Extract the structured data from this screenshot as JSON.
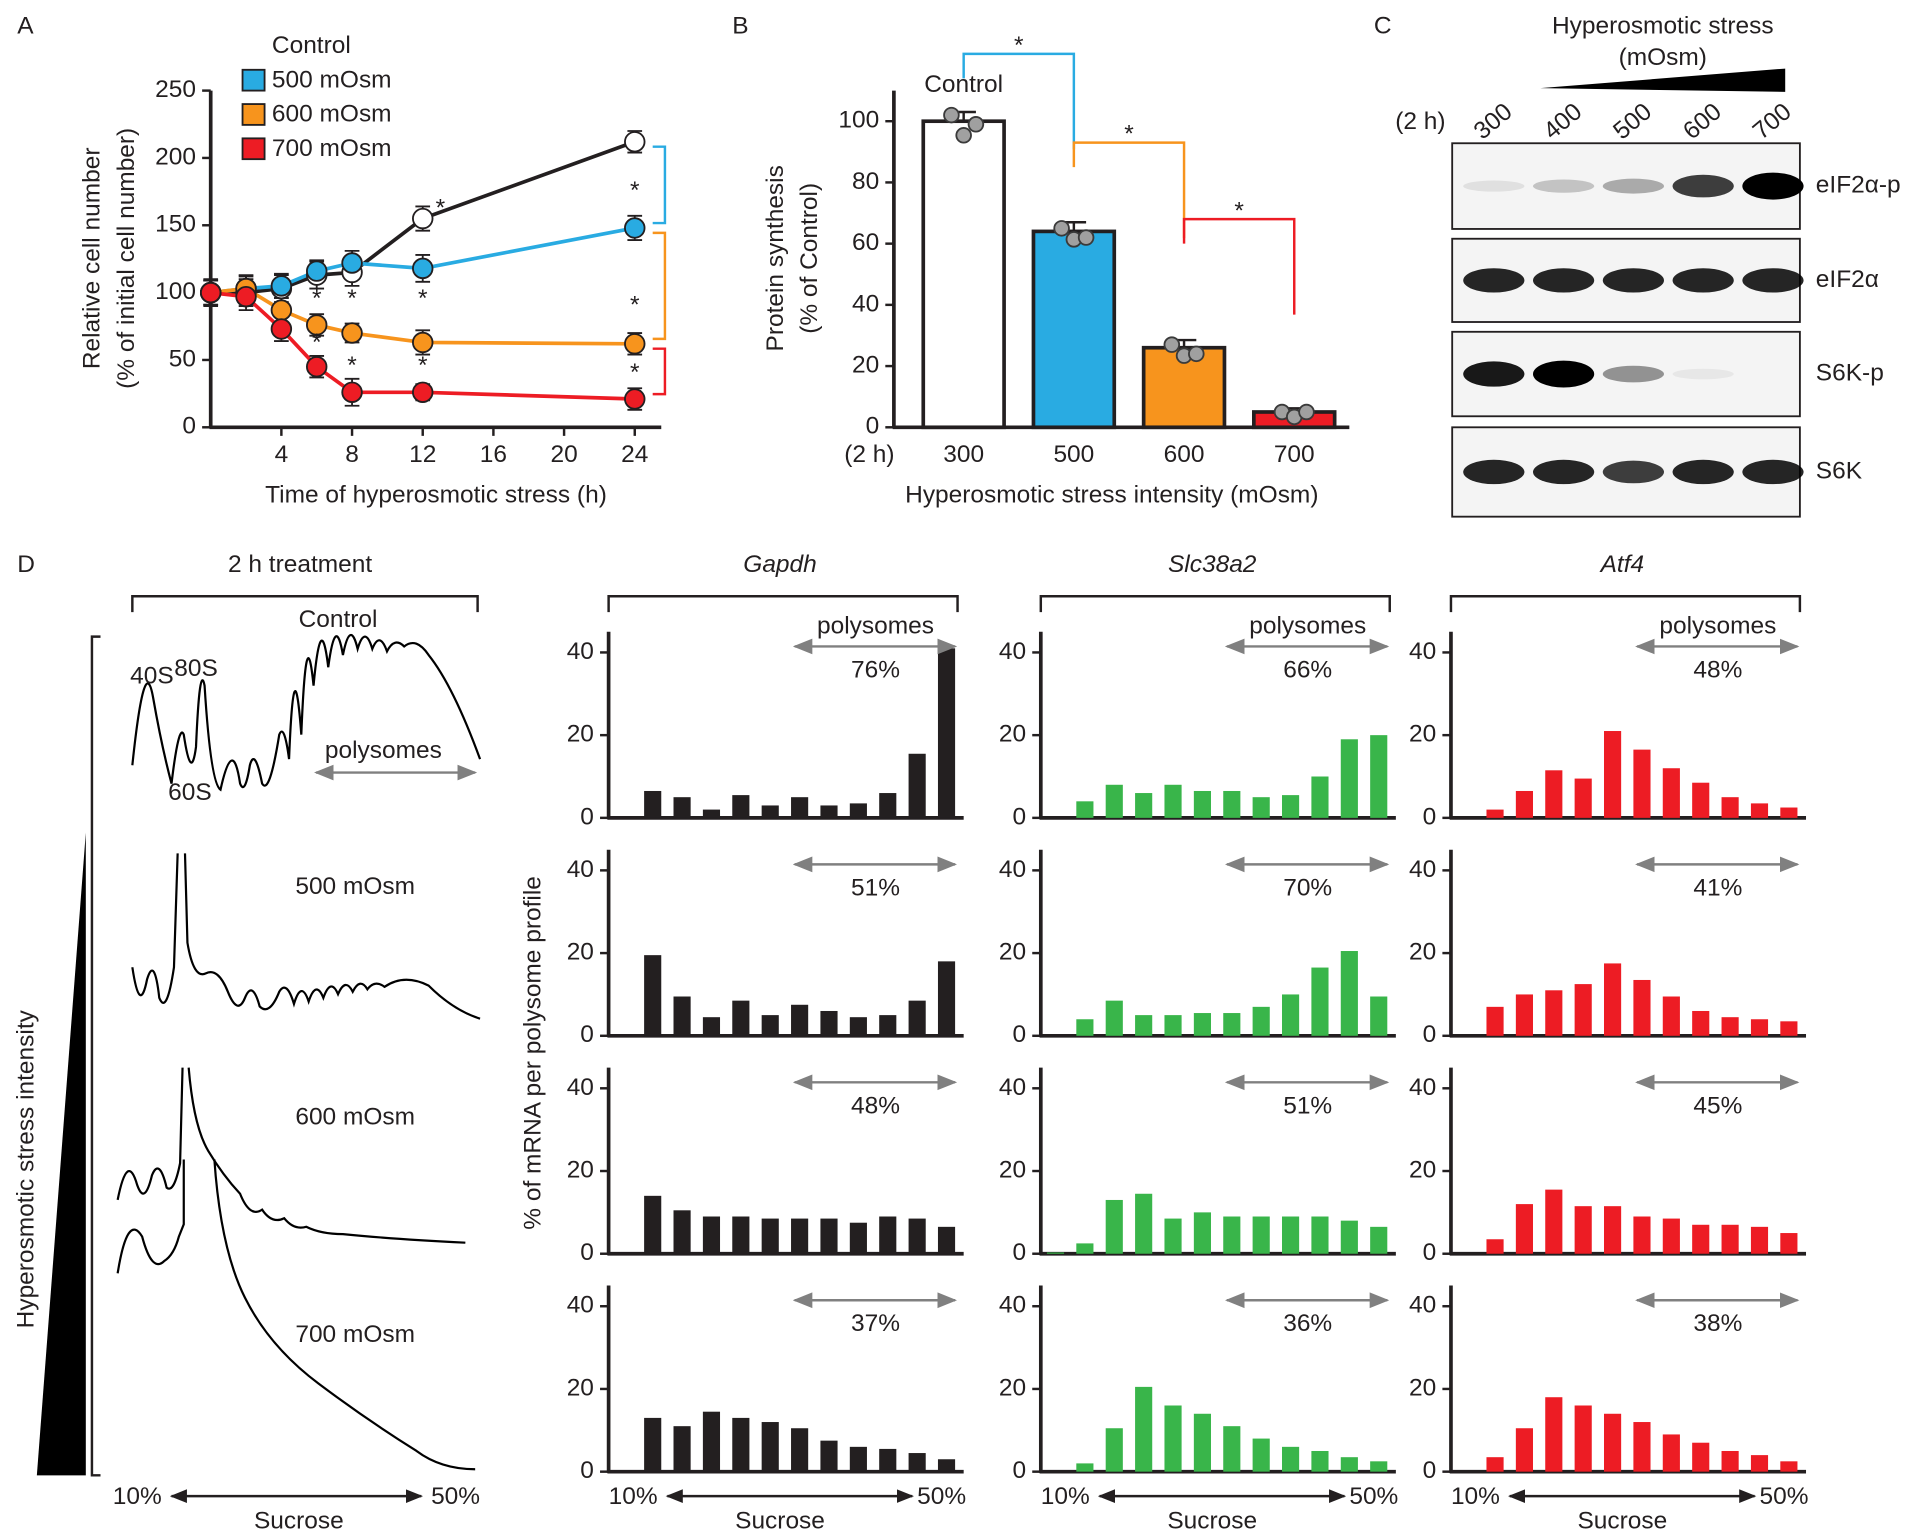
{
  "chart_data": [
    {
      "type": "line",
      "panel_label": "A",
      "xlabel": "Time of hyperosmotic stress (h)",
      "ylabel": [
        "Relative cell number",
        "(% of initial cell number)"
      ],
      "x": [
        0,
        2,
        4,
        6,
        8,
        12,
        24
      ],
      "xlim": [
        0,
        25.5
      ],
      "xticks": [
        4,
        8,
        12,
        16,
        20,
        24
      ],
      "ylim": [
        0,
        250
      ],
      "yticks": [
        0,
        50,
        100,
        150,
        200,
        250
      ],
      "series": [
        {
          "name": "Control",
          "color": "#231f20",
          "marker": "open",
          "values": [
            100,
            100,
            103,
            113,
            115,
            155,
            212
          ],
          "errors": [
            10,
            10,
            10,
            10,
            10,
            9,
            8
          ]
        },
        {
          "name": "500 mOsm",
          "color": "#29abe2",
          "marker": "filled",
          "values": [
            100,
            103,
            105,
            116,
            122,
            118,
            148
          ],
          "errors": [
            9,
            9,
            9,
            8,
            9,
            10,
            9
          ]
        },
        {
          "name": "600 mOsm",
          "color": "#f7941d",
          "marker": "filled",
          "values": [
            100,
            103,
            87,
            76,
            70,
            63,
            62
          ],
          "errors": [
            9,
            10,
            9,
            8,
            7,
            9,
            8
          ]
        },
        {
          "name": "700 mOsm",
          "color": "#ed1c24",
          "marker": "filled",
          "values": [
            100,
            97,
            73,
            45,
            26,
            26,
            21
          ],
          "errors": [
            9,
            10,
            9,
            8,
            10,
            6,
            8
          ]
        }
      ],
      "annotations": [
        {
          "text": "*",
          "x": 13,
          "y": 162,
          "color": "#29abe2"
        },
        {
          "text": "*",
          "x": 24,
          "y": 175,
          "color": "#29abe2"
        },
        {
          "text": "*",
          "x": 6,
          "y": 95,
          "color": "#f7941d"
        },
        {
          "text": "*",
          "x": 8,
          "y": 95,
          "color": "#f7941d"
        },
        {
          "text": "*",
          "x": 12,
          "y": 95,
          "color": "#f7941d"
        },
        {
          "text": "*",
          "x": 24,
          "y": 90,
          "color": "#f7941d"
        },
        {
          "text": "*",
          "x": 6,
          "y": 62,
          "color": "#ed1c24"
        },
        {
          "text": "*",
          "x": 8,
          "y": 45,
          "color": "#ed1c24"
        },
        {
          "text": "*",
          "x": 12,
          "y": 45,
          "color": "#ed1c24"
        },
        {
          "text": "*",
          "x": 24,
          "y": 40,
          "color": "#ed1c24"
        }
      ]
    },
    {
      "type": "bar",
      "panel_label": "B",
      "x_prefix": "(2 h)",
      "xlabel": "Hyperosmotic stress intensity (mOsm)",
      "ylabel": [
        "Protein synthesis",
        "(% of Control)"
      ],
      "categories": [
        "300",
        "500",
        "600",
        "700"
      ],
      "values": [
        100,
        64,
        26,
        5
      ],
      "errors": [
        3,
        3,
        2.5,
        1.2
      ],
      "replicates": [
        [
          102,
          97,
          99
        ],
        [
          65,
          63,
          62
        ],
        [
          27,
          25,
          24
        ],
        [
          5,
          5,
          5
        ]
      ],
      "colors": [
        "#ffffff",
        "#29abe2",
        "#f7941d",
        "#ed1c24"
      ],
      "bar_label": "Control",
      "ylim": [
        0,
        110
      ],
      "yticks": [
        0,
        20,
        40,
        60,
        80,
        100
      ],
      "comparisons": [
        {
          "from": 0,
          "to": 1,
          "level": 122,
          "text": "*",
          "color": "#29abe2"
        },
        {
          "from": 1,
          "to": 2,
          "level": 93,
          "text": "*",
          "color": "#f7941d"
        },
        {
          "from": 2,
          "to": 3,
          "level": 68,
          "text": "*",
          "color": "#ed1c24"
        }
      ]
    },
    {
      "type": "blot",
      "panel_label": "C",
      "title": [
        "Hyperosmotic stress",
        "(mOsm)"
      ],
      "time_label": "(2 h)",
      "lanes": [
        "300",
        "400",
        "500",
        "600",
        "700"
      ],
      "bands": [
        {
          "name": "eIF2α-p",
          "intensities": [
            0.08,
            0.2,
            0.3,
            0.75,
            1
          ]
        },
        {
          "name": "eIF2α",
          "intensities": [
            0.85,
            0.85,
            0.85,
            0.85,
            0.85
          ]
        },
        {
          "name": "S6K-p",
          "intensities": [
            0.9,
            1,
            0.4,
            0.05,
            0
          ]
        },
        {
          "name": "S6K",
          "intensities": [
            0.85,
            0.85,
            0.75,
            0.85,
            0.85
          ]
        }
      ]
    },
    {
      "type": "profile",
      "panel_label": "D",
      "title": "2 h treatment",
      "side_label": "Hyperosmotic stress intensity",
      "peaks": [
        "40S",
        "80S",
        "60S"
      ],
      "range_label": "polysomes",
      "conditions": [
        "Control",
        "500 mOsm",
        "600 mOsm",
        "700 mOsm"
      ],
      "sucrose": [
        "10%",
        "Sucrose",
        "50%"
      ]
    },
    {
      "type": "bar_grid",
      "ylabel": "% of mRNA per polysome profile",
      "ylim": [
        0,
        45
      ],
      "yticks": [
        0,
        20,
        40
      ],
      "range_label": "polysomes",
      "sucrose": [
        "10%",
        "Sucrose",
        "50%"
      ],
      "panels": [
        {
          "title": "Gapdh",
          "color": "#231f20",
          "rows": [
            {
              "values": [
                0.3,
                6.5,
                5,
                2,
                5.5,
                3,
                5,
                3,
                3.5,
                6,
                15.5,
                41
              ],
              "polysome_fraction": "76%"
            },
            {
              "values": [
                0.3,
                19.5,
                9.5,
                4.5,
                8.5,
                5,
                7.5,
                6,
                4.5,
                5,
                8.5,
                18
              ],
              "polysome_fraction": "51%"
            },
            {
              "values": [
                0.3,
                14,
                10.5,
                9,
                9,
                8.5,
                8.5,
                8.5,
                7.5,
                9,
                8.5,
                6.5
              ],
              "polysome_fraction": "48%"
            },
            {
              "values": [
                0.3,
                13,
                11,
                14.5,
                13,
                12,
                10.5,
                7.5,
                6,
                5.5,
                4.5,
                3
              ],
              "polysome_fraction": "37%"
            }
          ]
        },
        {
          "title": "Slc38a2",
          "color": "#39b54a",
          "rows": [
            {
              "values": [
                0,
                4,
                8,
                6,
                8,
                6.5,
                6.5,
                5,
                5.5,
                10,
                19,
                20
              ],
              "polysome_fraction": "66%"
            },
            {
              "values": [
                0,
                4,
                8.5,
                5,
                5,
                5.5,
                5.5,
                7,
                10,
                16.5,
                20.5,
                9.5
              ],
              "polysome_fraction": "70%"
            },
            {
              "values": [
                0.3,
                2.5,
                13,
                14.5,
                8.5,
                10,
                9,
                9,
                9,
                9,
                8,
                6.5
              ],
              "polysome_fraction": "51%"
            },
            {
              "values": [
                0,
                2,
                10.5,
                20.5,
                16,
                14,
                11,
                8,
                6,
                5,
                3.5,
                2.5
              ],
              "polysome_fraction": "36%"
            }
          ]
        },
        {
          "title": "Atf4",
          "color": "#ed1c24",
          "rows": [
            {
              "values": [
                0,
                2,
                6.5,
                11.5,
                9.5,
                21,
                16.5,
                12,
                8.5,
                5,
                3.5,
                2.5
              ],
              "polysome_fraction": "48%"
            },
            {
              "values": [
                0,
                7,
                10,
                11,
                12.5,
                17.5,
                13.5,
                9.5,
                6,
                4.5,
                4,
                3.5
              ],
              "polysome_fraction": "41%"
            },
            {
              "values": [
                0,
                3.5,
                12,
                15.5,
                11.5,
                11.5,
                9,
                8.5,
                7,
                7,
                6.5,
                5
              ],
              "polysome_fraction": "45%"
            },
            {
              "values": [
                0,
                3.5,
                10.5,
                18,
                16,
                14,
                12,
                9,
                7,
                5,
                4,
                2.5
              ],
              "polysome_fraction": "38%"
            }
          ]
        }
      ]
    }
  ]
}
